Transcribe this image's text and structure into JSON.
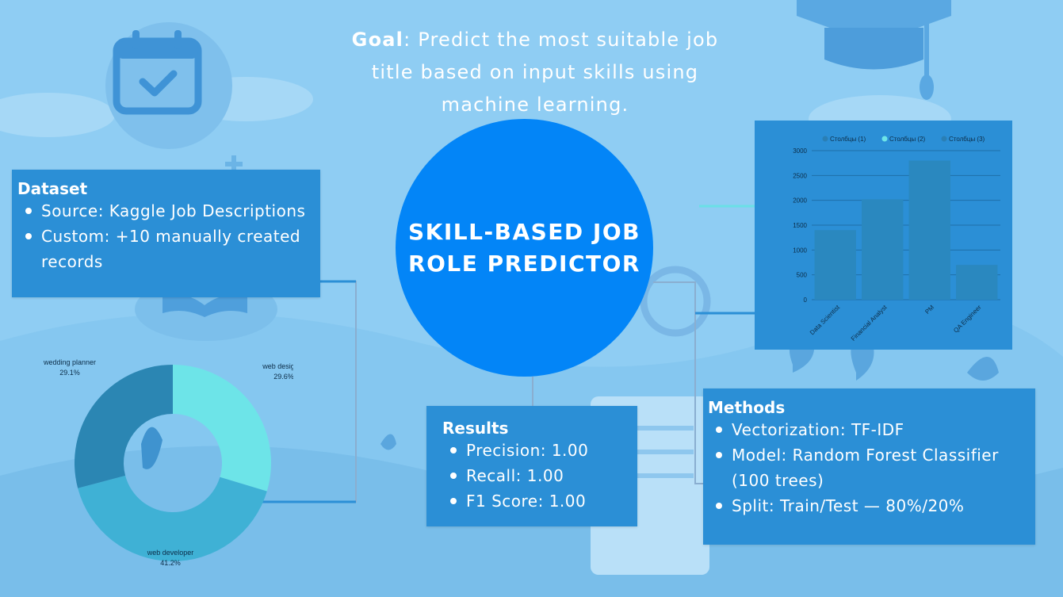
{
  "goal": {
    "label": "Goal",
    "text": ": Predict the most suitable job title based on input skills using machine learning."
  },
  "title": "SKILL-BASED JOB ROLE PREDICTOR",
  "dataset": {
    "heading": "Dataset",
    "items": [
      "Source: Kaggle Job Descriptions",
      "Custom: +10 manually created records"
    ]
  },
  "results": {
    "heading": "Results",
    "items": [
      "Precision: 1.00",
      "Recall: 1.00",
      "F1 Score: 1.00"
    ]
  },
  "methods": {
    "heading": "Methods",
    "items": [
      "Vectorization: TF-IDF",
      "Model: Random Forest Classifier (100 trees)",
      "Split: Train/Test — 80%/20%"
    ]
  },
  "colors": {
    "background": "#8fcdf3",
    "circle": "#0385f7",
    "panel": "#2b8fd6",
    "bar": "#2a88bf",
    "donut": [
      "#6de4e8",
      "#3fb1d5",
      "#2b86b3"
    ]
  },
  "chart_data": [
    {
      "type": "bar",
      "categories": [
        "Data Scientist",
        "Financial Analyst",
        "PM",
        "QA Engineer"
      ],
      "values": [
        1400,
        2020,
        2800,
        700
      ],
      "ylim": [
        0,
        3000
      ],
      "yticks": [
        0,
        500,
        1000,
        1500,
        2000,
        2500,
        3000
      ],
      "legend": [
        "Столбцы (1)",
        "Столбцы (2)",
        "Столбцы (3)"
      ],
      "legend_placement": "top",
      "grid": true
    },
    {
      "type": "pie",
      "donut": true,
      "labels": [
        "web designer",
        "web developer",
        "wedding planner"
      ],
      "values": [
        29.6,
        41.2,
        29.1
      ],
      "label_texts": [
        "29.6%",
        "41.2%",
        "29.1%"
      ]
    }
  ]
}
